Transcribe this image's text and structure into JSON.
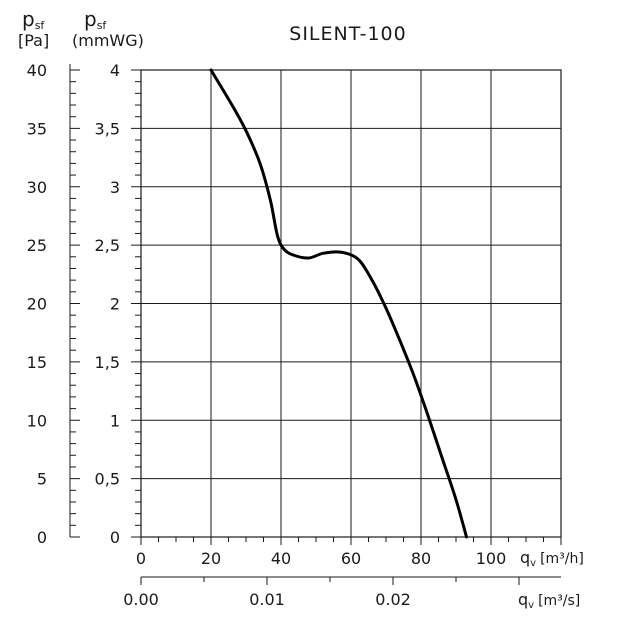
{
  "chart_data": {
    "type": "line",
    "title": "SILENT-100",
    "axes": {
      "y_left_outer": {
        "label_main": "p",
        "label_sub": "sf",
        "unit": "[Pa]",
        "min": 0,
        "max": 40,
        "ticks": [
          "0",
          "5",
          "10",
          "15",
          "20",
          "25",
          "30",
          "35",
          "40"
        ]
      },
      "y_left_inner": {
        "label_main": "p",
        "label_sub": "sf",
        "unit": "(mmWG)",
        "min": 0,
        "max": 4,
        "ticks": [
          "0",
          "0,5",
          "1",
          "1,5",
          "2",
          "2,5",
          "3",
          "3,5",
          "4"
        ]
      },
      "x_primary": {
        "label_main": "q",
        "label_sub": "v",
        "unit": "[m³/h]",
        "min": 0,
        "max": 120,
        "ticks": [
          "0",
          "20",
          "40",
          "60",
          "80",
          "100"
        ]
      },
      "x_secondary": {
        "label_main": "q",
        "label_sub": "v",
        "unit": "[m³/s]",
        "ticks": [
          "0.00",
          "0.01",
          "0.02"
        ]
      }
    },
    "grid": true,
    "x": [
      20,
      26,
      30,
      34,
      37,
      39,
      41,
      44,
      48,
      52,
      57,
      62,
      66,
      70,
      74,
      78,
      82,
      86,
      90,
      93
    ],
    "y": [
      4.0,
      3.7,
      3.48,
      3.2,
      2.88,
      2.58,
      2.46,
      2.41,
      2.39,
      2.43,
      2.44,
      2.38,
      2.2,
      1.96,
      1.68,
      1.38,
      1.04,
      0.68,
      0.32,
      0.0
    ]
  }
}
